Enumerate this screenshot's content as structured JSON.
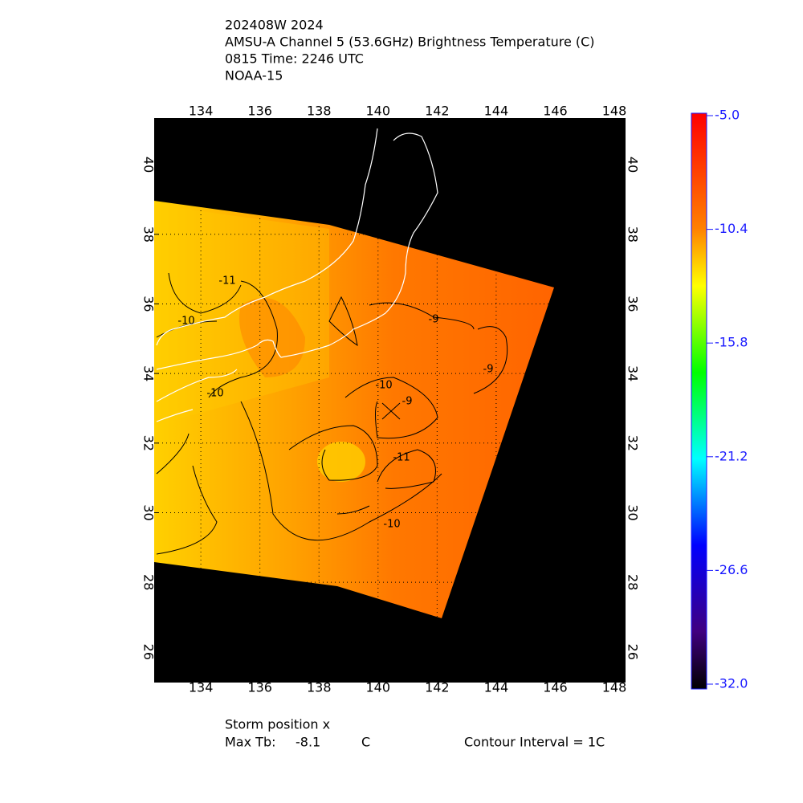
{
  "header": {
    "lines": [
      "202408W 2024",
      "AMSU-A Channel 5 (53.6GHz) Brightness Temperature (C)",
      "0815 Time: 2246 UTC",
      "NOAA-15"
    ]
  },
  "map": {
    "xlim": [
      132.42,
      148.38
    ],
    "ylim": [
      25.12,
      41.34
    ],
    "xticks": [
      134,
      136,
      138,
      140,
      142,
      144,
      146,
      148
    ],
    "yticks": [
      26,
      28,
      30,
      32,
      34,
      36,
      38,
      40
    ],
    "contour_labels": [
      "-11",
      "-10",
      "-10",
      "-9",
      "-9",
      "-10",
      "-9",
      "-11",
      "-10"
    ]
  },
  "colorbar": {
    "lim": [
      -32,
      -5
    ],
    "ticks": [
      {
        "value": -5,
        "label": "-5.0"
      },
      -10.4,
      -15.8,
      -21.2,
      -26.6,
      {
        "value": -32,
        "label": "-32.0"
      }
    ]
  },
  "footer": {
    "storm": "Storm position x",
    "max_label": "Max Tb:",
    "max_value": -8.1,
    "max_unit": "C",
    "contour": "Contour Interval = 1C"
  }
}
